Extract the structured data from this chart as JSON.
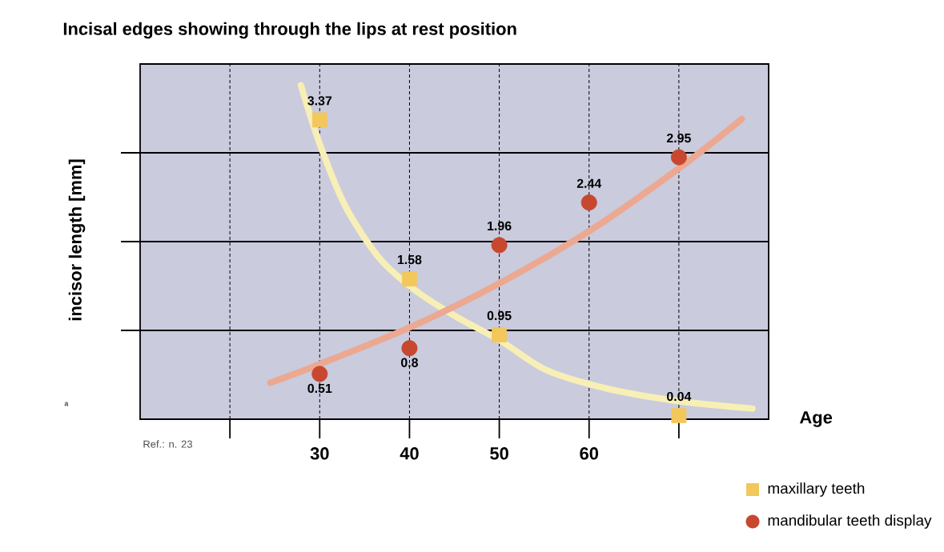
{
  "chart_data": {
    "type": "scatter",
    "title": "Incisal edges showing through the lips at rest position",
    "xlabel": "Age",
    "ylabel": "incisor length [mm]",
    "xlim": [
      10,
      80
    ],
    "ylim": [
      0,
      4
    ],
    "xticks": [
      {
        "value": 20,
        "label": null
      },
      30,
      40,
      50,
      60,
      {
        "value": 70,
        "label": null
      }
    ],
    "yticks": [
      {
        "value": 1,
        "label": null
      },
      {
        "value": 2,
        "label": null
      },
      {
        "value": 3,
        "label": null
      }
    ],
    "tick_labels": "x",
    "grid": true,
    "legend": "bottom right",
    "series": [
      {
        "name": "maxillary teeth",
        "marker": "square",
        "color": "#f2c75c",
        "data_labels": true,
        "x": [
          30,
          40,
          50,
          70
        ],
        "values": [
          3.37,
          1.58,
          0.95,
          0.04
        ]
      },
      {
        "name": "mandibular teeth display",
        "marker": "circle",
        "color": "#c8472f",
        "data_labels": true,
        "x": [
          30,
          40,
          50,
          60,
          70
        ],
        "values": [
          0.51,
          0.8,
          1.96,
          2.44,
          2.95
        ]
      },
      {
        "type": "line",
        "marker": "none",
        "color": "#f7efb5",
        "x": [
          27.9,
          30,
          32.9,
          36.6,
          40.4,
          45.1,
          50.2,
          55.3,
          62.2,
          70.2,
          78.2
        ],
        "values": [
          3.76,
          3.1,
          2.39,
          1.82,
          1.47,
          1.16,
          0.88,
          0.55,
          0.34,
          0.2,
          0.12
        ]
      },
      {
        "type": "line",
        "marker": "none",
        "color": "#eca890",
        "x": [
          24.5,
          30,
          40.4,
          50.2,
          60.5,
          70.2,
          77
        ],
        "values": [
          0.41,
          0.62,
          1.05,
          1.54,
          2.15,
          2.84,
          3.38
        ]
      }
    ],
    "annotations": [
      "a",
      "Ref.: n. 23"
    ]
  }
}
